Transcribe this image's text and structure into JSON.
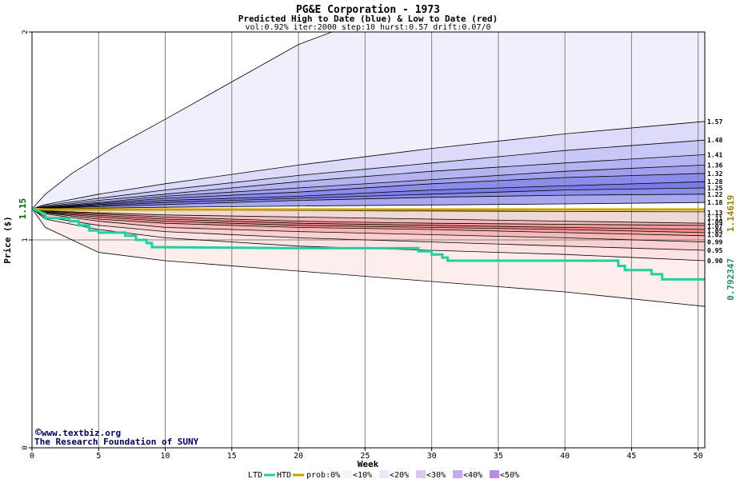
{
  "chart_data": {
    "type": "area",
    "title": "PG&E Corporation - 1973",
    "subtitle": "Predicted High to Date (blue) &  Low to Date (red)",
    "params": "vol:0.92% iter:2000 step:10 hurst:0.57 drift:0.07/0",
    "xlabel": "Week",
    "ylabel": "Price ($)",
    "xlim": [
      0,
      50.5
    ],
    "ylim": [
      0,
      2
    ],
    "x_ticks": [
      0,
      5,
      10,
      15,
      20,
      25,
      30,
      35,
      40,
      45,
      50
    ],
    "y_ticks": [
      0,
      1,
      2
    ],
    "grid": true,
    "start_price": 1.15,
    "start_label": "1.15",
    "htd_value_label": "1.14619",
    "ltd_value_label": "0.792347",
    "high_band_edges": [
      {
        "x": [
          0,
          1,
          3,
          6,
          10,
          15,
          20,
          22.5,
          30,
          40,
          50.5
        ],
        "y": [
          1.15,
          1.22,
          1.32,
          1.44,
          1.58,
          1.76,
          1.94,
          2.03,
          2.3,
          2.65,
          3.0
        ]
      },
      {
        "x": [
          0,
          1,
          5,
          10,
          20,
          30,
          40,
          50.5
        ],
        "y": [
          1.15,
          1.17,
          1.22,
          1.27,
          1.36,
          1.44,
          1.51,
          1.57
        ]
      },
      {
        "x": [
          0,
          1,
          5,
          10,
          20,
          30,
          40,
          50.5
        ],
        "y": [
          1.15,
          1.165,
          1.2,
          1.24,
          1.31,
          1.37,
          1.43,
          1.48
        ]
      },
      {
        "x": [
          0,
          1,
          5,
          10,
          20,
          30,
          40,
          50.5
        ],
        "y": [
          1.15,
          1.16,
          1.19,
          1.22,
          1.28,
          1.33,
          1.37,
          1.41
        ]
      },
      {
        "x": [
          0,
          1,
          5,
          10,
          20,
          30,
          40,
          50.5
        ],
        "y": [
          1.15,
          1.158,
          1.18,
          1.21,
          1.25,
          1.29,
          1.33,
          1.36
        ]
      },
      {
        "x": [
          0,
          1,
          5,
          10,
          20,
          30,
          40,
          50.5
        ],
        "y": [
          1.15,
          1.155,
          1.175,
          1.2,
          1.23,
          1.27,
          1.3,
          1.32
        ]
      },
      {
        "x": [
          0,
          1,
          5,
          10,
          20,
          30,
          40,
          50.5
        ],
        "y": [
          1.15,
          1.153,
          1.17,
          1.19,
          1.21,
          1.24,
          1.26,
          1.28
        ]
      },
      {
        "x": [
          0,
          1,
          5,
          10,
          20,
          30,
          40,
          50.5
        ],
        "y": [
          1.15,
          1.152,
          1.165,
          1.18,
          1.2,
          1.22,
          1.24,
          1.25
        ]
      },
      {
        "x": [
          0,
          1,
          5,
          10,
          20,
          30,
          40,
          50.5
        ],
        "y": [
          1.15,
          1.151,
          1.16,
          1.17,
          1.19,
          1.205,
          1.215,
          1.22
        ]
      },
      {
        "x": [
          0,
          1,
          5,
          10,
          20,
          30,
          40,
          50.5
        ],
        "y": [
          1.15,
          1.15,
          1.153,
          1.157,
          1.163,
          1.168,
          1.173,
          1.18
        ]
      }
    ],
    "low_band_edges": [
      {
        "x": [
          0,
          1,
          5,
          10,
          20,
          30,
          40,
          50.5
        ],
        "y": [
          1.15,
          1.147,
          1.145,
          1.143,
          1.141,
          1.139,
          1.137,
          1.135
        ]
      },
      {
        "x": [
          0,
          1,
          5,
          10,
          20,
          30,
          40,
          50.5
        ],
        "y": [
          1.15,
          1.14,
          1.13,
          1.12,
          1.11,
          1.1,
          1.09,
          1.08
        ]
      },
      {
        "x": [
          0,
          1,
          5,
          10,
          20,
          30,
          40,
          50.5
        ],
        "y": [
          1.15,
          1.138,
          1.125,
          1.11,
          1.09,
          1.08,
          1.075,
          1.07
        ]
      },
      {
        "x": [
          0,
          1,
          5,
          10,
          20,
          30,
          40,
          50.5
        ],
        "y": [
          1.15,
          1.135,
          1.118,
          1.1,
          1.08,
          1.07,
          1.06,
          1.05
        ]
      },
      {
        "x": [
          0,
          1,
          5,
          10,
          20,
          30,
          40,
          50.5
        ],
        "y": [
          1.15,
          1.132,
          1.11,
          1.09,
          1.07,
          1.06,
          1.05,
          1.035
        ]
      },
      {
        "x": [
          0,
          1,
          5,
          10,
          20,
          30,
          40,
          50.5
        ],
        "y": [
          1.15,
          1.13,
          1.1,
          1.08,
          1.06,
          1.05,
          1.035,
          1.02
        ]
      },
      {
        "x": [
          0,
          1,
          5,
          10,
          20,
          30,
          40,
          50.5
        ],
        "y": [
          1.15,
          1.125,
          1.09,
          1.06,
          1.04,
          1.025,
          1.01,
          0.99
        ]
      },
      {
        "x": [
          0,
          1,
          5,
          10,
          20,
          30,
          40,
          50.5
        ],
        "y": [
          1.15,
          1.11,
          1.07,
          1.04,
          1.01,
          0.99,
          0.97,
          0.95
        ]
      },
      {
        "x": [
          0,
          1,
          5,
          10,
          20,
          30,
          40,
          50.5
        ],
        "y": [
          1.15,
          1.1,
          1.05,
          1.01,
          0.97,
          0.95,
          0.93,
          0.9
        ]
      },
      {
        "x": [
          0,
          1,
          5,
          10,
          20,
          30,
          40,
          50.5
        ],
        "y": [
          1.15,
          1.06,
          0.94,
          0.9,
          0.85,
          0.8,
          0.75,
          0.68
        ]
      }
    ],
    "high_fill_colors": [
      "#f0f0fc",
      "#dcdcfa",
      "#c8c8f6",
      "#b4b4f2",
      "#a0a0ee",
      "#8c8cea",
      "#7c7ce6",
      "#8c8cea",
      "#a8a8f0"
    ],
    "low_fill_colors": [
      "#f0d8d8",
      "#f4b8b8",
      "#f49898",
      "#f48c8c",
      "#f4a0a0",
      "#f8b8b8",
      "#fad0d0",
      "#fce2e2",
      "#fdeeee"
    ],
    "right_labels_high": [
      {
        "label": "1.57",
        "y": 1.57
      },
      {
        "label": "1.48",
        "y": 1.48
      },
      {
        "label": "1.41",
        "y": 1.41
      },
      {
        "label": "1.36",
        "y": 1.36
      },
      {
        "label": "1.32",
        "y": 1.32
      },
      {
        "label": "1.28",
        "y": 1.28
      },
      {
        "label": "1.25",
        "y": 1.25
      },
      {
        "label": "1.22",
        "y": 1.22
      },
      {
        "label": "1.18",
        "y": 1.18
      }
    ],
    "right_labels_low": [
      {
        "label": "1.13",
        "y": 1.13
      },
      {
        "label": "1.11",
        "y": 1.105
      },
      {
        "label": "1.09",
        "y": 1.085
      },
      {
        "label": "1.07",
        "y": 1.065
      },
      {
        "label": "1.05",
        "y": 1.045
      },
      {
        "label": "1.02",
        "y": 1.025
      },
      {
        "label": "0.99",
        "y": 0.99
      },
      {
        "label": "0.95",
        "y": 0.95
      },
      {
        "label": "0.90",
        "y": 0.9
      }
    ],
    "htd_series": {
      "x": [
        0,
        1,
        50.5
      ],
      "y": [
        1.15,
        1.1462,
        1.1462
      ]
    },
    "ltd_series": {
      "x": [
        0,
        1.0,
        1.0,
        2.8,
        2.8,
        3.5,
        3.5,
        4.3,
        4.3,
        5.0,
        5.0,
        7.0,
        7.0,
        7.8,
        7.8,
        8.6,
        8.6,
        9.0,
        9.0,
        10.0,
        20.0,
        29.0,
        29.0,
        30.0,
        30.0,
        30.8,
        30.8,
        31.2,
        31.2,
        44.0,
        44.0,
        44.5,
        44.5,
        46.5,
        46.5,
        47.3,
        47.3,
        50.5
      ],
      "y": [
        1.15,
        1.125,
        1.105,
        1.105,
        1.09,
        1.09,
        1.07,
        1.07,
        1.045,
        1.045,
        1.035,
        1.035,
        1.02,
        1.02,
        1.0,
        1.0,
        0.985,
        0.985,
        0.965,
        0.965,
        0.96,
        0.96,
        0.945,
        0.945,
        0.93,
        0.93,
        0.915,
        0.915,
        0.9,
        0.9,
        0.875,
        0.875,
        0.855,
        0.855,
        0.835,
        0.835,
        0.81,
        0.81
      ]
    },
    "colors": {
      "htd": "#c8a000",
      "ltd": "#20d0a0",
      "htd_label": "#a08000",
      "ltd_label": "#209060",
      "start_label": "#006400",
      "watermark": "#00005a",
      "grid": "#808080"
    },
    "watermark": {
      "line1": "www.textbiz.org",
      "line2": "The Research Foundation of SUNY",
      "copyright": "©"
    },
    "legend": {
      "ltd": "LTD",
      "htd": "HTD",
      "prob": "prob:0%",
      "items": [
        {
          "label": "<10%",
          "color": "#f4f4fc"
        },
        {
          "label": "<20%",
          "color": "#e8e8fa"
        },
        {
          "label": "<30%",
          "color": "#d8c8f0"
        },
        {
          "label": "<40%",
          "color": "#c8a8ec"
        },
        {
          "label": "<50%",
          "color": "#b888ea"
        }
      ]
    }
  }
}
